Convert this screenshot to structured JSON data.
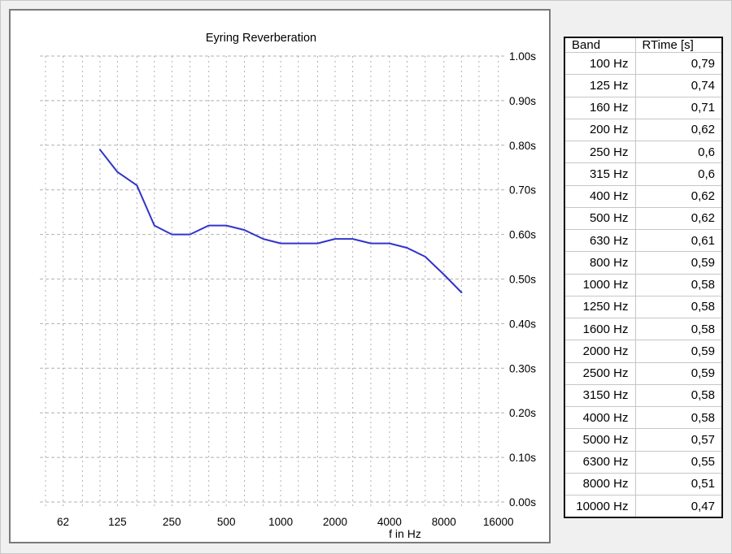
{
  "page": {
    "background": "#f0f0f0"
  },
  "chart_data": {
    "type": "line",
    "title": "Eyring Reverberation",
    "xlabel": "f in Hz",
    "x_scale": "log",
    "x_range_hz": [
      50,
      16000
    ],
    "ylim": [
      0.0,
      1.0
    ],
    "grid": "dashed, 1/3-octave vertical lines, 0.1 s horizontal lines",
    "grid_freqs": [
      50,
      62.5,
      80,
      100,
      125,
      160,
      200,
      250,
      315,
      400,
      500,
      630,
      800,
      1000,
      1250,
      1600,
      2000,
      2500,
      3150,
      4000,
      5000,
      6300,
      8000,
      10000,
      12500,
      16000
    ],
    "x_ticks": [
      {
        "f": 62.5,
        "label": "62"
      },
      {
        "f": 125,
        "label": "125"
      },
      {
        "f": 250,
        "label": "250"
      },
      {
        "f": 500,
        "label": "500"
      },
      {
        "f": 1000,
        "label": "1000"
      },
      {
        "f": 2000,
        "label": "2000"
      },
      {
        "f": 4000,
        "label": "4000"
      },
      {
        "f": 8000,
        "label": "8000"
      },
      {
        "f": 16000,
        "label": "16000"
      }
    ],
    "y_ticks": [
      {
        "v": 1.0,
        "label": "1.00s"
      },
      {
        "v": 0.9,
        "label": "0.90s"
      },
      {
        "v": 0.8,
        "label": "0.80s"
      },
      {
        "v": 0.7,
        "label": "0.70s"
      },
      {
        "v": 0.6,
        "label": "0.60s"
      },
      {
        "v": 0.5,
        "label": "0.50s"
      },
      {
        "v": 0.4,
        "label": "0.40s"
      },
      {
        "v": 0.3,
        "label": "0.30s"
      },
      {
        "v": 0.2,
        "label": "0.20s"
      },
      {
        "v": 0.1,
        "label": "0.10s"
      },
      {
        "v": 0.0,
        "label": "0.00s"
      }
    ],
    "series": [
      {
        "name": "Eyring Reverberation",
        "color": "#3333cc",
        "x": [
          100,
          125,
          160,
          200,
          250,
          315,
          400,
          500,
          630,
          800,
          1000,
          1250,
          1600,
          2000,
          2500,
          3150,
          4000,
          5000,
          6300,
          8000,
          10000
        ],
        "values": [
          0.79,
          0.74,
          0.71,
          0.62,
          0.6,
          0.6,
          0.62,
          0.62,
          0.61,
          0.59,
          0.58,
          0.58,
          0.58,
          0.59,
          0.59,
          0.58,
          0.58,
          0.57,
          0.55,
          0.51,
          0.47
        ]
      }
    ]
  },
  "table": {
    "headers": [
      "Band",
      "RTime [s]"
    ],
    "rows": [
      {
        "band": "100 Hz",
        "rtime": "0,79"
      },
      {
        "band": "125 Hz",
        "rtime": "0,74"
      },
      {
        "band": "160 Hz",
        "rtime": "0,71"
      },
      {
        "band": "200 Hz",
        "rtime": "0,62"
      },
      {
        "band": "250 Hz",
        "rtime": "0,6"
      },
      {
        "band": "315 Hz",
        "rtime": "0,6"
      },
      {
        "band": "400 Hz",
        "rtime": "0,62"
      },
      {
        "band": "500 Hz",
        "rtime": "0,62"
      },
      {
        "band": "630 Hz",
        "rtime": "0,61"
      },
      {
        "band": "800 Hz",
        "rtime": "0,59"
      },
      {
        "band": "1000 Hz",
        "rtime": "0,58"
      },
      {
        "band": "1250 Hz",
        "rtime": "0,58"
      },
      {
        "band": "1600 Hz",
        "rtime": "0,58"
      },
      {
        "band": "2000 Hz",
        "rtime": "0,59"
      },
      {
        "band": "2500 Hz",
        "rtime": "0,59"
      },
      {
        "band": "3150 Hz",
        "rtime": "0,58"
      },
      {
        "band": "4000 Hz",
        "rtime": "0,58"
      },
      {
        "band": "5000 Hz",
        "rtime": "0,57"
      },
      {
        "band": "6300 Hz",
        "rtime": "0,55"
      },
      {
        "band": "8000 Hz",
        "rtime": "0,51"
      },
      {
        "band": "10000 Hz",
        "rtime": "0,47"
      }
    ]
  },
  "colors": {
    "curve": "#3333cc",
    "grid": "#b0b0b0",
    "panel_border": "#7a7a7a",
    "table_border": "#111111",
    "row_divider": "#c6c6c6",
    "background": "#f0f0f0"
  }
}
